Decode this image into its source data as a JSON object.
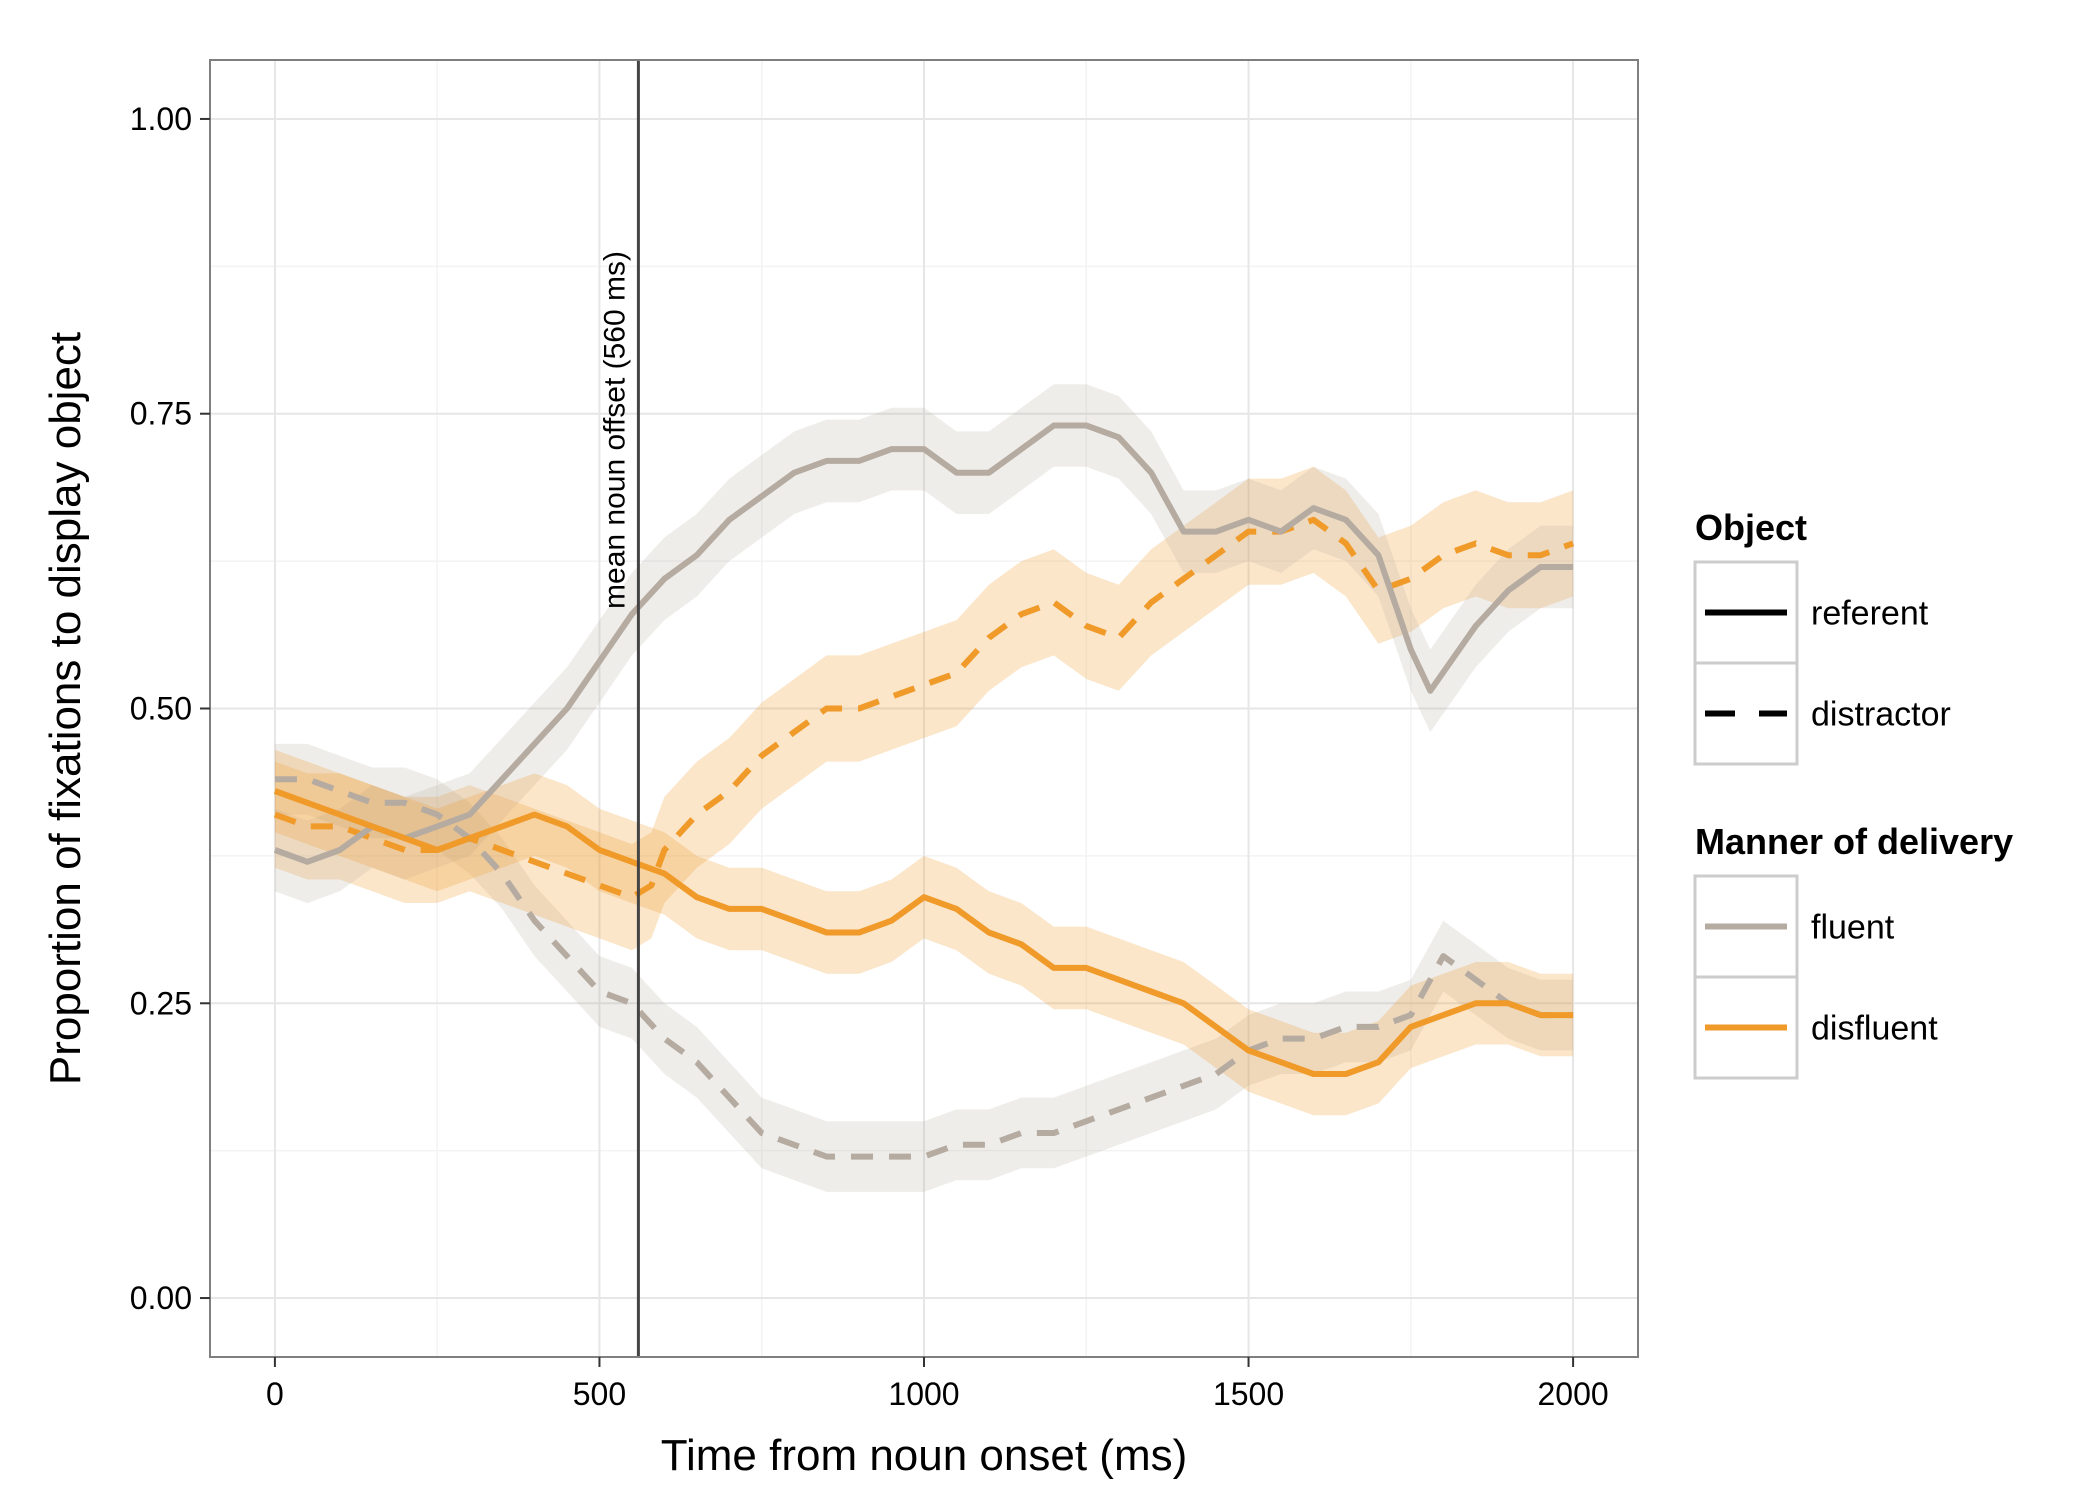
{
  "chart_data": {
    "type": "line",
    "xlabel": "Time from noun onset (ms)",
    "ylabel": "Proportion of fixations to display object",
    "xlim": [
      -100,
      2100
    ],
    "ylim": [
      -0.05,
      1.05
    ],
    "x_ticks": [
      0,
      500,
      1000,
      1500,
      2000
    ],
    "x_tick_labels": [
      "0",
      "500",
      "1000",
      "1500",
      "2000"
    ],
    "y_ticks": [
      0,
      0.25,
      0.5,
      0.75,
      1.0
    ],
    "y_tick_labels": [
      "0.00",
      "0.25",
      "0.50",
      "0.75",
      "1.00"
    ],
    "grid": true,
    "legend_position": "right",
    "colors": {
      "fluent": "#b5aba1",
      "disfluent": "#f09a2a",
      "vline": "#444444"
    },
    "annotation": {
      "x": 560,
      "text": "mean noun offset (560 ms)"
    },
    "legends": [
      {
        "title": "Object",
        "items": [
          {
            "label": "referent",
            "style": "solid"
          },
          {
            "label": "distractor",
            "style": "dashed"
          }
        ]
      },
      {
        "title": "Manner of delivery",
        "items": [
          {
            "label": "fluent",
            "color": "#b5aba1"
          },
          {
            "label": "disfluent",
            "color": "#f09a2a"
          }
        ]
      }
    ],
    "series": [
      {
        "name": "fluent referent",
        "object": "referent",
        "manner": "fluent",
        "ci": 0.035,
        "x": [
          0,
          50,
          100,
          150,
          200,
          250,
          300,
          350,
          400,
          450,
          500,
          550,
          600,
          650,
          700,
          750,
          800,
          850,
          900,
          950,
          1000,
          1050,
          1100,
          1150,
          1200,
          1250,
          1300,
          1350,
          1400,
          1450,
          1500,
          1550,
          1600,
          1650,
          1700,
          1750,
          1780,
          1850,
          1900,
          1950,
          2000
        ],
        "y": [
          0.38,
          0.37,
          0.38,
          0.4,
          0.39,
          0.4,
          0.41,
          0.44,
          0.47,
          0.5,
          0.54,
          0.58,
          0.61,
          0.63,
          0.66,
          0.68,
          0.7,
          0.71,
          0.71,
          0.72,
          0.72,
          0.7,
          0.7,
          0.72,
          0.74,
          0.74,
          0.73,
          0.7,
          0.65,
          0.65,
          0.66,
          0.65,
          0.67,
          0.66,
          0.63,
          0.55,
          0.515,
          0.57,
          0.6,
          0.62,
          0.62
        ]
      },
      {
        "name": "fluent distractor",
        "object": "distractor",
        "manner": "fluent",
        "ci": 0.03,
        "x": [
          0,
          50,
          100,
          150,
          200,
          250,
          300,
          350,
          400,
          450,
          500,
          550,
          600,
          650,
          700,
          750,
          800,
          850,
          900,
          950,
          1000,
          1050,
          1100,
          1150,
          1200,
          1250,
          1300,
          1350,
          1400,
          1450,
          1500,
          1550,
          1600,
          1650,
          1700,
          1750,
          1800,
          1850,
          1900,
          1950,
          2000
        ],
        "y": [
          0.44,
          0.44,
          0.43,
          0.42,
          0.42,
          0.41,
          0.39,
          0.36,
          0.32,
          0.29,
          0.26,
          0.25,
          0.22,
          0.2,
          0.17,
          0.14,
          0.13,
          0.12,
          0.12,
          0.12,
          0.12,
          0.13,
          0.13,
          0.14,
          0.14,
          0.15,
          0.16,
          0.17,
          0.18,
          0.19,
          0.21,
          0.22,
          0.22,
          0.23,
          0.23,
          0.24,
          0.29,
          0.27,
          0.25,
          0.24,
          0.24
        ]
      },
      {
        "name": "disfluent referent",
        "object": "referent",
        "manner": "disfluent",
        "ci": 0.035,
        "x": [
          0,
          50,
          100,
          150,
          200,
          250,
          300,
          350,
          400,
          450,
          500,
          550,
          600,
          650,
          700,
          750,
          800,
          850,
          900,
          950,
          1000,
          1050,
          1100,
          1150,
          1200,
          1250,
          1300,
          1350,
          1400,
          1450,
          1500,
          1550,
          1600,
          1650,
          1700,
          1750,
          1800,
          1850,
          1900,
          1950,
          2000
        ],
        "y": [
          0.43,
          0.42,
          0.41,
          0.4,
          0.39,
          0.38,
          0.39,
          0.4,
          0.41,
          0.4,
          0.38,
          0.37,
          0.36,
          0.34,
          0.33,
          0.33,
          0.32,
          0.31,
          0.31,
          0.32,
          0.34,
          0.33,
          0.31,
          0.3,
          0.28,
          0.28,
          0.27,
          0.26,
          0.25,
          0.23,
          0.21,
          0.2,
          0.19,
          0.19,
          0.2,
          0.23,
          0.24,
          0.25,
          0.25,
          0.24,
          0.24
        ]
      },
      {
        "name": "disfluent distractor",
        "object": "distractor",
        "manner": "disfluent",
        "ci": 0.045,
        "x": [
          0,
          50,
          100,
          150,
          200,
          250,
          300,
          350,
          400,
          450,
          500,
          550,
          580,
          600,
          650,
          700,
          750,
          800,
          850,
          900,
          950,
          1000,
          1050,
          1100,
          1150,
          1200,
          1250,
          1300,
          1350,
          1400,
          1450,
          1500,
          1550,
          1600,
          1650,
          1700,
          1750,
          1800,
          1850,
          1900,
          1950,
          2000
        ],
        "y": [
          0.41,
          0.4,
          0.4,
          0.39,
          0.38,
          0.38,
          0.39,
          0.38,
          0.37,
          0.36,
          0.35,
          0.34,
          0.35,
          0.38,
          0.41,
          0.43,
          0.46,
          0.48,
          0.5,
          0.5,
          0.51,
          0.52,
          0.53,
          0.56,
          0.58,
          0.59,
          0.57,
          0.56,
          0.59,
          0.61,
          0.63,
          0.65,
          0.65,
          0.66,
          0.64,
          0.6,
          0.61,
          0.63,
          0.64,
          0.63,
          0.63,
          0.64
        ]
      }
    ]
  }
}
